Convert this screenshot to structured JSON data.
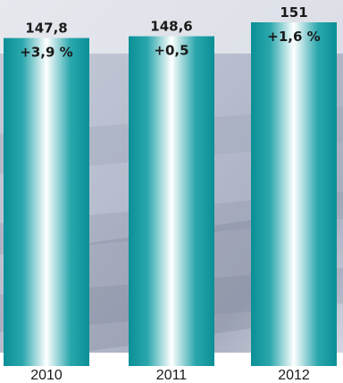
{
  "chart_data": {
    "type": "bar",
    "title": "",
    "xlabel": "",
    "ylabel": "",
    "categories": [
      "2010",
      "2011",
      "2012"
    ],
    "values": [
      147.8,
      148.6,
      151
    ],
    "value_labels": [
      "147,8",
      "148,6",
      "151"
    ],
    "change_labels": [
      "+3,9 %",
      "+0,5",
      "+1,6 %"
    ],
    "ylim": [
      0,
      151
    ],
    "bar_colors": {
      "edge": "#0a8f96",
      "center": "#ffffff"
    },
    "background_tint": "#c9cfdd"
  }
}
